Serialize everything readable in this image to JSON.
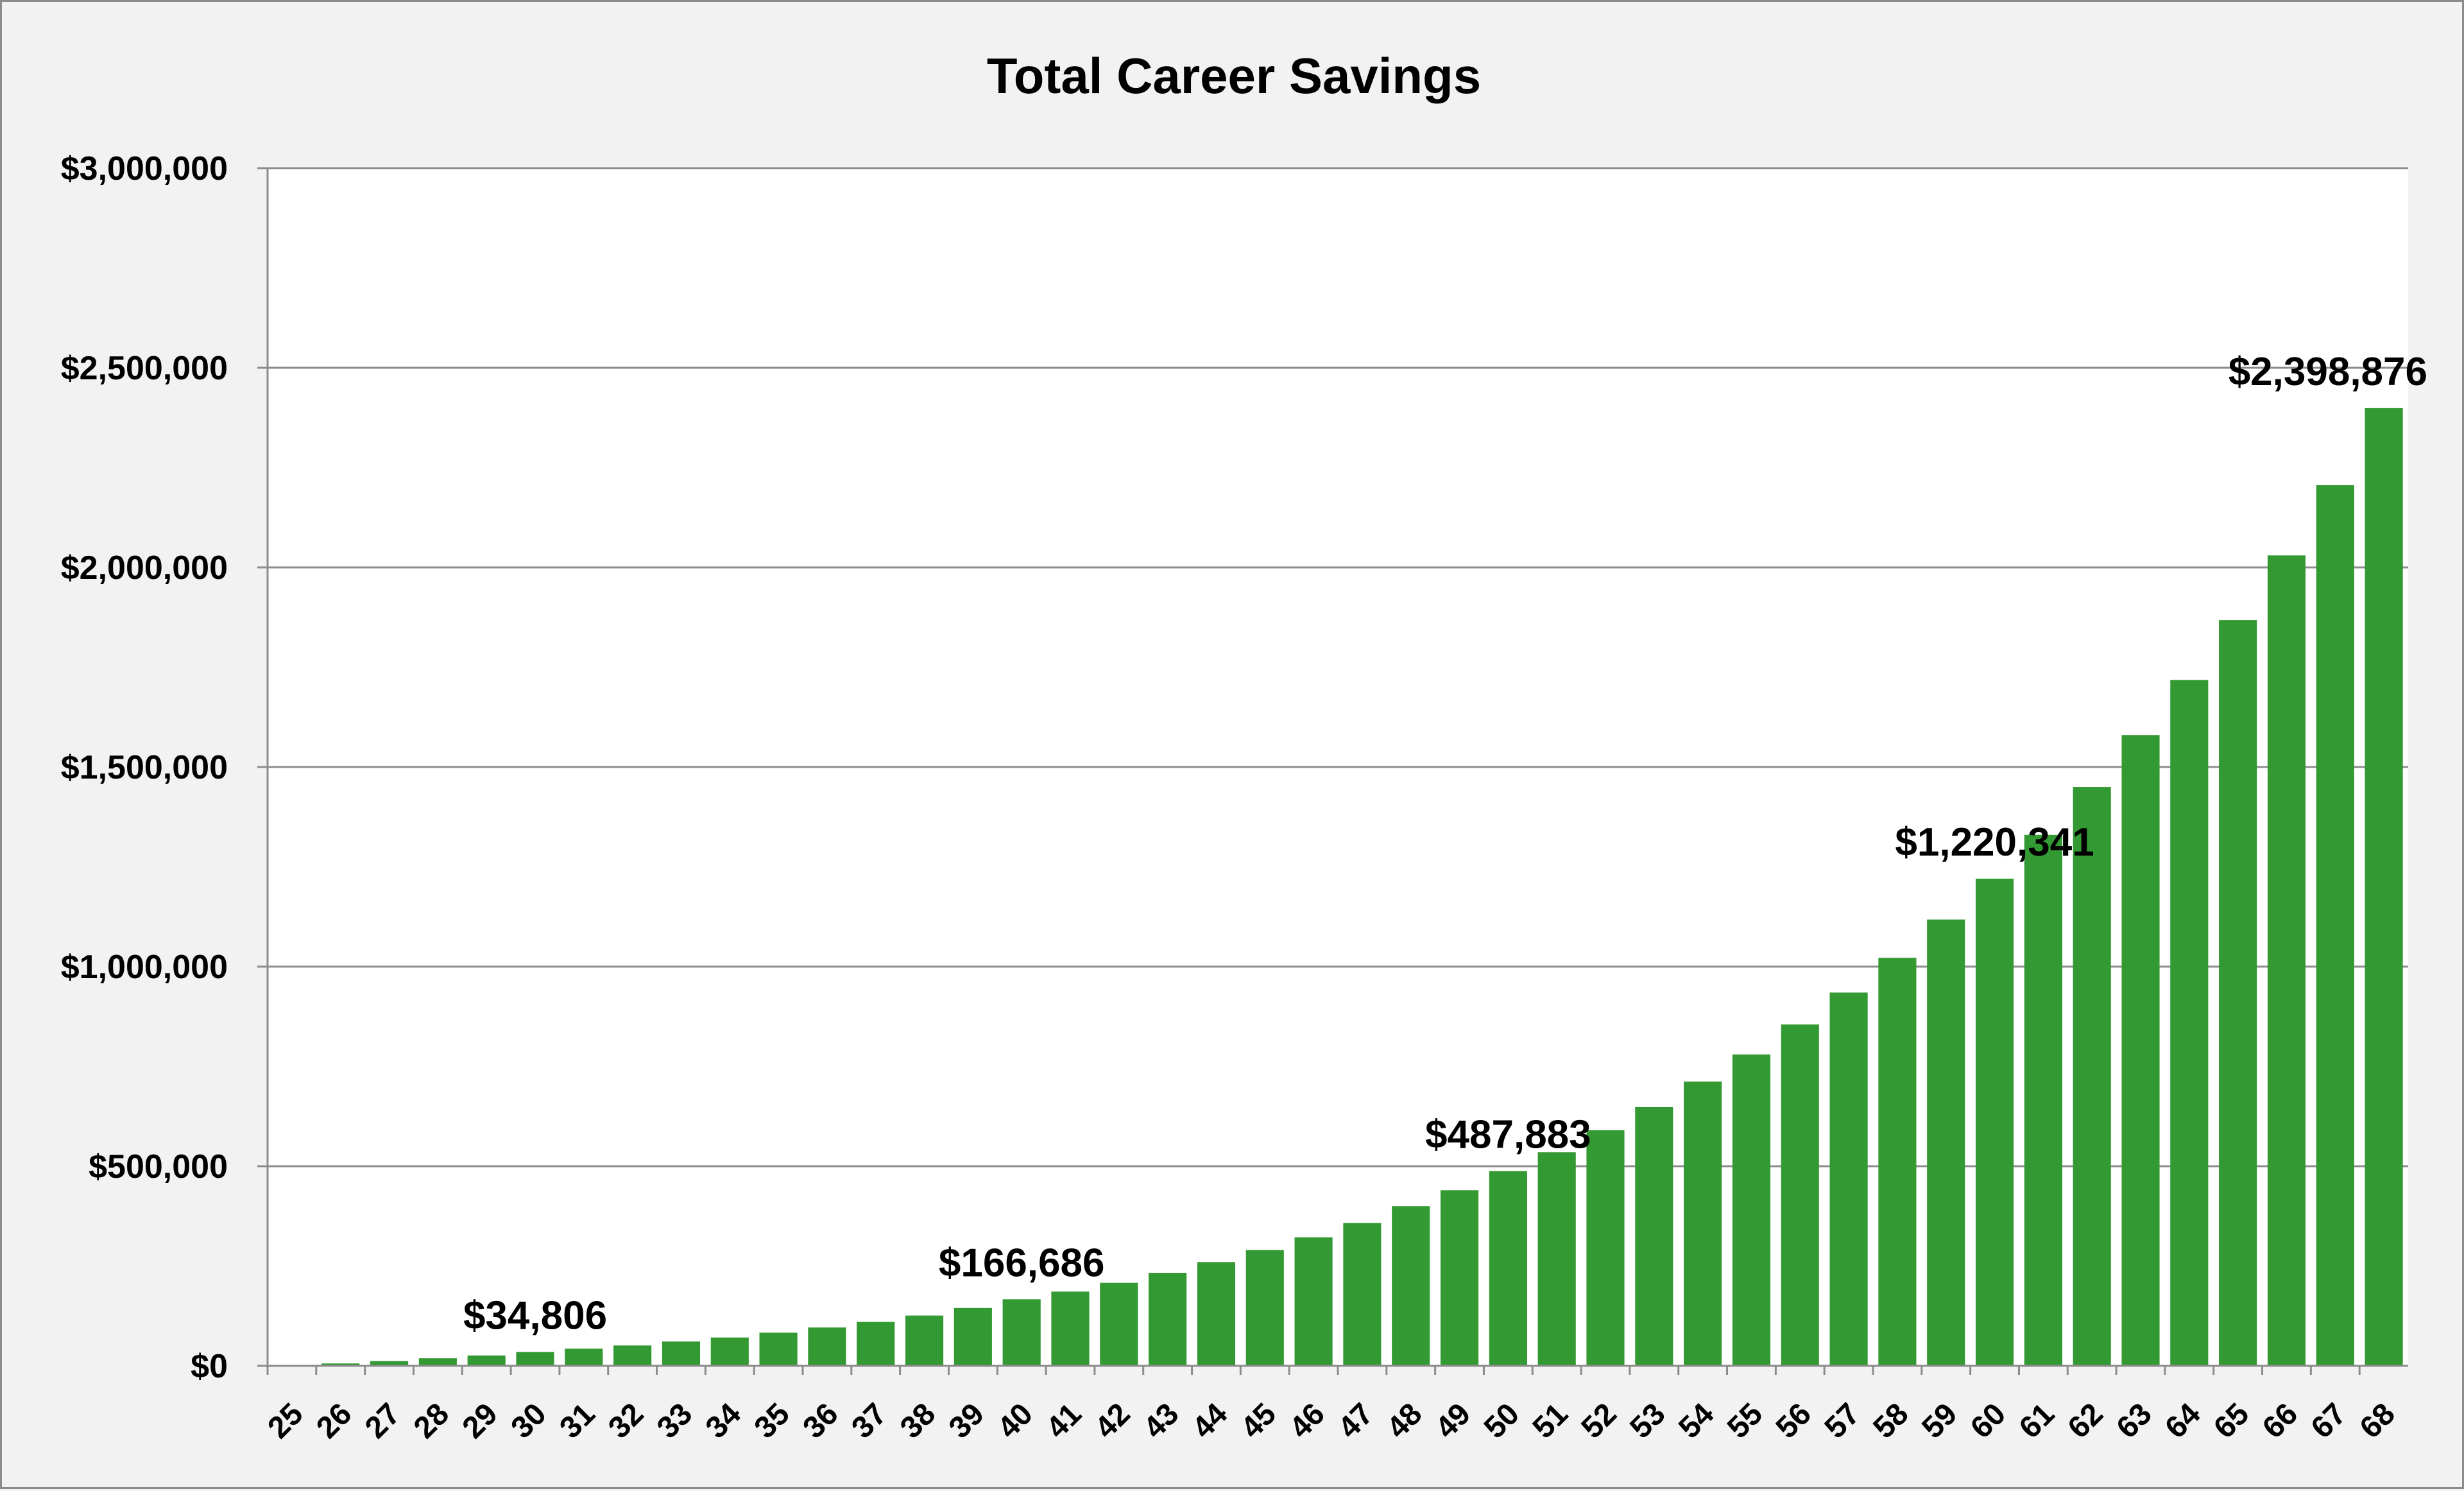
{
  "chart_data": {
    "type": "bar",
    "title": "Total Career Savings",
    "xlabel": "",
    "ylabel": "",
    "ylim": [
      0,
      3000000
    ],
    "yticks": [
      0,
      500000,
      1000000,
      1500000,
      2000000,
      2500000,
      3000000
    ],
    "ytick_labels": [
      "$0",
      "$500,000",
      "$1,000,000",
      "$1,500,000",
      "$2,000,000",
      "$2,500,000",
      "$3,000,000"
    ],
    "grid": true,
    "legend": "none",
    "bar_color": "#339933",
    "categories": [
      "25",
      "26",
      "27",
      "28",
      "29",
      "30",
      "31",
      "32",
      "33",
      "34",
      "35",
      "36",
      "37",
      "38",
      "39",
      "40",
      "41",
      "42",
      "43",
      "44",
      "45",
      "46",
      "47",
      "48",
      "49",
      "50",
      "51",
      "52",
      "53",
      "54",
      "55",
      "56",
      "57",
      "58",
      "59",
      "60",
      "61",
      "62",
      "63",
      "64",
      "65",
      "66",
      "67",
      "68"
    ],
    "values": [
      0,
      6000,
      12000,
      19000,
      26000,
      34806,
      43000,
      51000,
      61000,
      71000,
      83000,
      96000,
      110000,
      126000,
      145000,
      166686,
      186000,
      208000,
      233000,
      260000,
      290000,
      322000,
      358000,
      400000,
      440000,
      487883,
      535000,
      590000,
      648000,
      712000,
      780000,
      855000,
      935000,
      1022000,
      1118000,
      1220341,
      1330000,
      1450000,
      1580000,
      1718000,
      1868000,
      2030000,
      2206000,
      2398876
    ],
    "data_labels": [
      {
        "category": "30",
        "text": "$34,806"
      },
      {
        "category": "40",
        "text": "$166,686"
      },
      {
        "category": "50",
        "text": "$487,883"
      },
      {
        "category": "60",
        "text": "$1,220,341"
      },
      {
        "category": "68",
        "text": "$2,398,876"
      }
    ]
  }
}
